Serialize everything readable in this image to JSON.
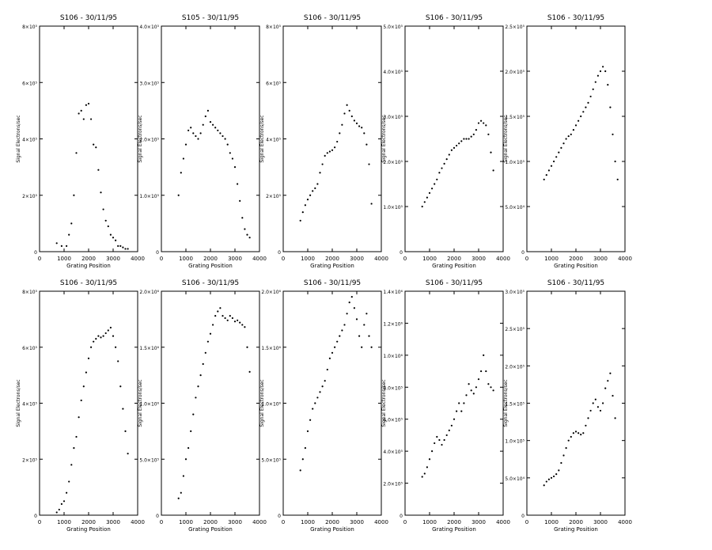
{
  "chart_data": [
    {
      "type": "scatter",
      "title": "S106 - 30/11/95",
      "xlabel": "Grating Position",
      "ylabel": "Signal Electrons/sec",
      "xlim": [
        0,
        4000
      ],
      "ylim": [
        0,
        800000
      ],
      "xticks": [
        "0",
        "1000",
        "2000",
        "3000",
        "4000"
      ],
      "yticks": [
        "0",
        "2×10⁵",
        "4×10⁵",
        "6×10⁵",
        "8×10⁵"
      ],
      "x": [
        700,
        900,
        1100,
        1200,
        1300,
        1400,
        1500,
        1600,
        1700,
        1800,
        1900,
        2000,
        2100,
        2200,
        2300,
        2400,
        2500,
        2600,
        2700,
        2800,
        2900,
        3000,
        3100,
        3200,
        3300,
        3400,
        3500,
        3600
      ],
      "y": [
        30000,
        20000,
        20000,
        60000,
        100000,
        200000,
        350000,
        490000,
        500000,
        470000,
        520000,
        525000,
        470000,
        380000,
        370000,
        290000,
        210000,
        150000,
        110000,
        90000,
        60000,
        50000,
        40000,
        20000,
        20000,
        15000,
        10000,
        10000
      ]
    },
    {
      "type": "scatter",
      "title": "S105 - 30/11/95",
      "xlabel": "Grating Position",
      "ylabel": "Signal Electrons/sec",
      "xlim": [
        0,
        4000
      ],
      "ylim": [
        0,
        400000
      ],
      "xticks": [
        "0",
        "1000",
        "2000",
        "3000",
        "4000"
      ],
      "yticks": [
        "0",
        "1.0×10⁵",
        "2.0×10⁵",
        "3.0×10⁵",
        "4.0×10⁵"
      ],
      "x": [
        700,
        800,
        900,
        1000,
        1100,
        1200,
        1300,
        1400,
        1500,
        1600,
        1700,
        1800,
        1900,
        2000,
        2100,
        2200,
        2300,
        2400,
        2500,
        2600,
        2700,
        2800,
        2900,
        3000,
        3100,
        3200,
        3300,
        3400,
        3500,
        3600
      ],
      "y": [
        100000,
        140000,
        165000,
        190000,
        215000,
        220000,
        210000,
        205000,
        200000,
        210000,
        225000,
        240000,
        250000,
        230000,
        225000,
        220000,
        215000,
        210000,
        205000,
        200000,
        190000,
        175000,
        165000,
        150000,
        120000,
        90000,
        60000,
        40000,
        30000,
        25000
      ]
    },
    {
      "type": "scatter",
      "title": "S106 - 30/11/95",
      "xlabel": "Grating Position",
      "ylabel": "Signal Electrons/sec",
      "xlim": [
        0,
        4000
      ],
      "ylim": [
        0,
        800000
      ],
      "xticks": [
        "0",
        "1000",
        "2000",
        "3000",
        "4000"
      ],
      "yticks": [
        "0",
        "2×10⁵",
        "4×10⁵",
        "6×10⁵",
        "8×10⁵"
      ],
      "x": [
        700,
        800,
        900,
        1000,
        1100,
        1200,
        1300,
        1400,
        1500,
        1600,
        1700,
        1800,
        1900,
        2000,
        2100,
        2200,
        2300,
        2400,
        2500,
        2600,
        2700,
        2800,
        2900,
        3000,
        3100,
        3200,
        3300,
        3400,
        3500,
        3600
      ],
      "y": [
        110000,
        140000,
        165000,
        185000,
        200000,
        215000,
        225000,
        240000,
        280000,
        310000,
        340000,
        350000,
        355000,
        360000,
        370000,
        390000,
        420000,
        450000,
        490000,
        520000,
        500000,
        480000,
        465000,
        455000,
        445000,
        440000,
        420000,
        380000,
        310000,
        170000
      ]
    },
    {
      "type": "scatter",
      "title": "S106 - 30/11/95",
      "xlabel": "Grating Position",
      "ylabel": "Signal Electrons/sec",
      "xlim": [
        0,
        4000
      ],
      "ylim": [
        0,
        500000
      ],
      "xticks": [
        "0",
        "1000",
        "2000",
        "3000",
        "4000"
      ],
      "yticks": [
        "0",
        "1.0×10⁵",
        "2.0×10⁵",
        "3.0×10⁵",
        "4.0×10⁵",
        "5.0×10⁵"
      ],
      "x": [
        700,
        800,
        900,
        1000,
        1100,
        1200,
        1300,
        1400,
        1500,
        1600,
        1700,
        1800,
        1900,
        2000,
        2100,
        2200,
        2300,
        2400,
        2500,
        2600,
        2700,
        2800,
        2900,
        3000,
        3100,
        3200,
        3300,
        3400,
        3500,
        3600
      ],
      "y": [
        100000,
        110000,
        120000,
        130000,
        140000,
        150000,
        160000,
        175000,
        185000,
        195000,
        205000,
        215000,
        225000,
        230000,
        235000,
        240000,
        245000,
        250000,
        250000,
        250000,
        255000,
        260000,
        270000,
        285000,
        290000,
        285000,
        280000,
        260000,
        220000,
        180000
      ]
    },
    {
      "type": "scatter",
      "title": "S106 - 30/11/95",
      "xlabel": "Grating Position",
      "ylabel": "Signal Electrons/sec",
      "xlim": [
        0,
        4000
      ],
      "ylim": [
        0,
        250000
      ],
      "xticks": [
        "0",
        "1000",
        "2000",
        "3000",
        "4000"
      ],
      "yticks": [
        "0",
        "5.0×10⁴",
        "1.0×10⁵",
        "1.5×10⁵",
        "2.0×10⁵",
        "2.5×10⁵"
      ],
      "x": [
        700,
        800,
        900,
        1000,
        1100,
        1200,
        1300,
        1400,
        1500,
        1600,
        1700,
        1800,
        1900,
        2000,
        2100,
        2200,
        2300,
        2400,
        2500,
        2600,
        2700,
        2800,
        2900,
        3000,
        3100,
        3200,
        3300,
        3400,
        3500,
        3600,
        3700
      ],
      "y": [
        80000,
        85000,
        90000,
        95000,
        100000,
        105000,
        110000,
        115000,
        120000,
        125000,
        128000,
        130000,
        135000,
        140000,
        145000,
        150000,
        155000,
        160000,
        165000,
        172000,
        180000,
        188000,
        195000,
        200000,
        205000,
        200000,
        185000,
        160000,
        130000,
        100000,
        80000
      ]
    },
    {
      "type": "scatter",
      "title": "S106 - 30/11/95",
      "xlabel": "Grating Position",
      "ylabel": "Signal Electrons/sec",
      "xlim": [
        0,
        4000
      ],
      "ylim": [
        0,
        800000
      ],
      "xticks": [
        "0",
        "1000",
        "2000",
        "3000",
        "4000"
      ],
      "yticks": [
        "0",
        "2×10⁵",
        "4×10⁵",
        "6×10⁵",
        "8×10⁵"
      ],
      "x": [
        700,
        800,
        900,
        1000,
        1100,
        1200,
        1300,
        1400,
        1500,
        1600,
        1700,
        1800,
        1900,
        2000,
        2100,
        2200,
        2300,
        2400,
        2500,
        2600,
        2700,
        2800,
        2900,
        3000,
        3100,
        3200,
        3300,
        3400,
        3500,
        3600
      ],
      "y": [
        10000,
        20000,
        40000,
        50000,
        80000,
        120000,
        180000,
        240000,
        280000,
        350000,
        410000,
        460000,
        510000,
        560000,
        600000,
        620000,
        630000,
        640000,
        635000,
        640000,
        650000,
        660000,
        670000,
        640000,
        600000,
        550000,
        460000,
        380000,
        300000,
        220000
      ]
    },
    {
      "type": "scatter",
      "title": "S106 - 30/11/95",
      "xlabel": "Grating Position",
      "ylabel": "Signal Electrons/sec",
      "xlim": [
        0,
        4000
      ],
      "ylim": [
        0,
        2000000
      ],
      "xticks": [
        "0",
        "1000",
        "2000",
        "3000",
        "4000"
      ],
      "yticks": [
        "0",
        "5.0×10⁵",
        "1.0×10⁶",
        "1.5×10⁶",
        "2.0×10⁶"
      ],
      "x": [
        700,
        800,
        900,
        1000,
        1100,
        1200,
        1300,
        1400,
        1500,
        1600,
        1700,
        1800,
        1900,
        2000,
        2100,
        2200,
        2300,
        2400,
        2500,
        2600,
        2700,
        2800,
        2900,
        3000,
        3100,
        3200,
        3300,
        3400,
        3500,
        3600
      ],
      "y": [
        150000,
        200000,
        350000,
        500000,
        600000,
        750000,
        900000,
        1050000,
        1150000,
        1250000,
        1350000,
        1450000,
        1550000,
        1620000,
        1700000,
        1780000,
        1820000,
        1850000,
        1780000,
        1760000,
        1740000,
        1780000,
        1760000,
        1730000,
        1740000,
        1720000,
        1700000,
        1680000,
        1500000,
        1280000
      ]
    },
    {
      "type": "scatter",
      "title": "S106 - 30/11/95",
      "xlabel": "Grating Position",
      "ylabel": "Signal Electrons/sec",
      "xlim": [
        0,
        4000
      ],
      "ylim": [
        0,
        2000000
      ],
      "xticks": [
        "0",
        "1000",
        "2000",
        "3000",
        "4000"
      ],
      "yticks": [
        "0",
        "5.0×10⁵",
        "1.0×10⁶",
        "1.5×10⁶",
        "2.0×10⁶"
      ],
      "x": [
        700,
        800,
        900,
        1000,
        1100,
        1200,
        1300,
        1400,
        1500,
        1600,
        1700,
        1800,
        1900,
        2000,
        2100,
        2200,
        2300,
        2400,
        2500,
        2600,
        2700,
        2800,
        2900,
        3000,
        3100,
        3200,
        3300,
        3400,
        3500,
        3600
      ],
      "y": [
        400000,
        500000,
        600000,
        750000,
        850000,
        950000,
        1000000,
        1050000,
        1100000,
        1150000,
        1200000,
        1300000,
        1400000,
        1450000,
        1500000,
        1550000,
        1600000,
        1650000,
        1700000,
        1800000,
        1900000,
        1950000,
        1850000,
        1750000,
        1600000,
        1500000,
        1700000,
        1800000,
        1600000,
        1500000
      ]
    },
    {
      "type": "scatter",
      "title": "S106 - 30/11/95",
      "xlabel": "Grating Position",
      "ylabel": "Signal Electrons/sec",
      "xlim": [
        0,
        4000
      ],
      "ylim": [
        0,
        1400000
      ],
      "xticks": [
        "0",
        "1000",
        "2000",
        "3000",
        "4000"
      ],
      "yticks": [
        "0",
        "2.0×10⁵",
        "4.0×10⁵",
        "6.0×10⁵",
        "8.0×10⁵",
        "1.0×10⁶",
        "1.2×10⁶",
        "1.4×10⁶"
      ],
      "x": [
        700,
        800,
        900,
        1000,
        1100,
        1200,
        1300,
        1400,
        1500,
        1600,
        1700,
        1800,
        1900,
        2000,
        2100,
        2200,
        2300,
        2400,
        2500,
        2600,
        2700,
        2800,
        2900,
        3000,
        3100,
        3200,
        3300,
        3400,
        3500,
        3600
      ],
      "y": [
        240000,
        260000,
        300000,
        350000,
        400000,
        450000,
        490000,
        470000,
        440000,
        470000,
        500000,
        530000,
        560000,
        600000,
        650000,
        700000,
        650000,
        700000,
        750000,
        820000,
        780000,
        760000,
        800000,
        850000,
        900000,
        1000000,
        900000,
        820000,
        800000,
        780000
      ]
    },
    {
      "type": "scatter",
      "title": "S106 - 30/11/95",
      "xlabel": "Grating Position",
      "ylabel": "Signal Electrons/sec",
      "xlim": [
        0,
        4000
      ],
      "ylim": [
        0,
        300000
      ],
      "xticks": [
        "0",
        "1000",
        "2000",
        "3000",
        "4000"
      ],
      "yticks": [
        "0",
        "5.0×10⁴",
        "1.0×10⁵",
        "1.5×10⁵",
        "2.0×10⁵",
        "2.5×10⁵",
        "3.0×10⁵"
      ],
      "x": [
        700,
        800,
        900,
        1000,
        1100,
        1200,
        1300,
        1400,
        1500,
        1600,
        1700,
        1800,
        1900,
        2000,
        2100,
        2200,
        2300,
        2400,
        2500,
        2600,
        2700,
        2800,
        2900,
        3000,
        3100,
        3200,
        3300,
        3400,
        3500,
        3600
      ],
      "y": [
        40000,
        45000,
        48000,
        50000,
        52000,
        55000,
        60000,
        70000,
        80000,
        90000,
        100000,
        105000,
        110000,
        112000,
        110000,
        108000,
        110000,
        120000,
        130000,
        140000,
        150000,
        155000,
        145000,
        140000,
        150000,
        170000,
        180000,
        190000,
        160000,
        130000
      ]
    }
  ]
}
